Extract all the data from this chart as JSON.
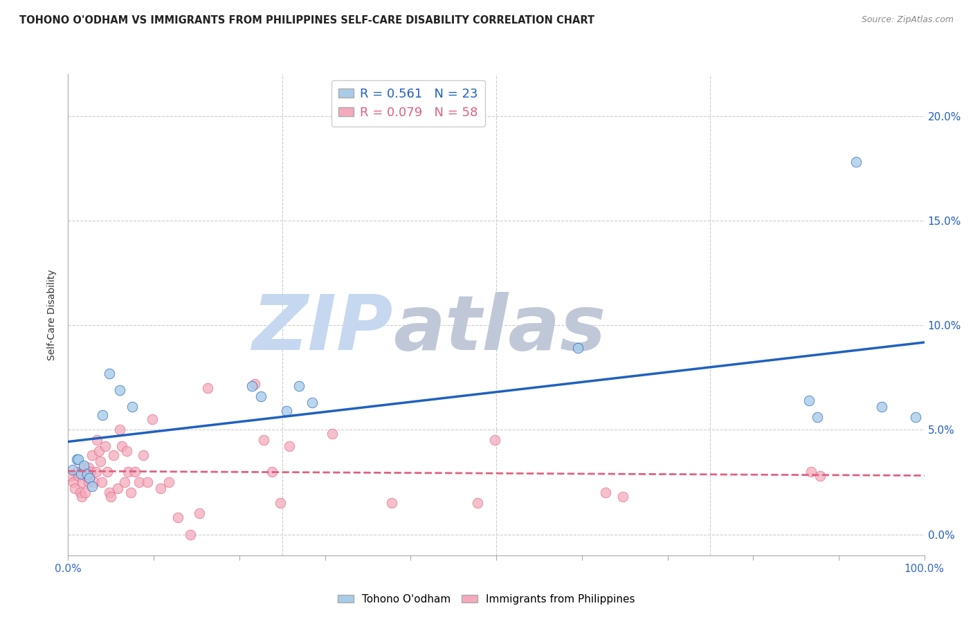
{
  "title": "TOHONO O'ODHAM VS IMMIGRANTS FROM PHILIPPINES SELF-CARE DISABILITY CORRELATION CHART",
  "source": "Source: ZipAtlas.com",
  "ylabel": "Self-Care Disability",
  "series1_label": "Tohono O'odham",
  "series2_label": "Immigrants from Philippines",
  "R1": 0.561,
  "N1": 23,
  "R2": 0.079,
  "N2": 58,
  "color1": "#a8cce8",
  "color2": "#f4aabb",
  "line1_color": "#2060c0",
  "line2_color": "#e06080",
  "xlim": [
    0.0,
    1.0
  ],
  "ylim": [
    -0.01,
    0.22
  ],
  "yticks": [
    0.0,
    0.05,
    0.1,
    0.15,
    0.2
  ],
  "xtick_major": [
    0.0,
    1.0
  ],
  "xtick_minor": [
    0.1,
    0.2,
    0.3,
    0.4,
    0.5,
    0.6,
    0.7,
    0.8,
    0.9
  ],
  "scatter1_x": [
    0.005,
    0.01,
    0.012,
    0.015,
    0.018,
    0.022,
    0.025,
    0.028,
    0.04,
    0.048,
    0.06,
    0.075,
    0.215,
    0.225,
    0.255,
    0.27,
    0.285,
    0.595,
    0.865,
    0.875,
    0.92,
    0.95,
    0.99
  ],
  "scatter1_y": [
    0.031,
    0.036,
    0.036,
    0.029,
    0.033,
    0.029,
    0.027,
    0.023,
    0.057,
    0.077,
    0.069,
    0.061,
    0.071,
    0.066,
    0.059,
    0.071,
    0.063,
    0.089,
    0.064,
    0.056,
    0.178,
    0.061,
    0.056
  ],
  "scatter2_x": [
    0.003,
    0.006,
    0.008,
    0.01,
    0.012,
    0.014,
    0.016,
    0.017,
    0.018,
    0.02,
    0.021,
    0.023,
    0.024,
    0.024,
    0.026,
    0.028,
    0.03,
    0.033,
    0.034,
    0.036,
    0.038,
    0.039,
    0.043,
    0.046,
    0.048,
    0.05,
    0.053,
    0.058,
    0.06,
    0.063,
    0.066,
    0.068,
    0.07,
    0.073,
    0.078,
    0.083,
    0.088,
    0.093,
    0.098,
    0.108,
    0.118,
    0.128,
    0.143,
    0.153,
    0.163,
    0.218,
    0.228,
    0.238,
    0.248,
    0.258,
    0.308,
    0.378,
    0.478,
    0.498,
    0.628,
    0.648,
    0.868,
    0.878
  ],
  "scatter2_y": [
    0.028,
    0.025,
    0.022,
    0.03,
    0.028,
    0.02,
    0.018,
    0.025,
    0.032,
    0.02,
    0.028,
    0.028,
    0.025,
    0.032,
    0.03,
    0.038,
    0.025,
    0.03,
    0.045,
    0.04,
    0.035,
    0.025,
    0.042,
    0.03,
    0.02,
    0.018,
    0.038,
    0.022,
    0.05,
    0.042,
    0.025,
    0.04,
    0.03,
    0.02,
    0.03,
    0.025,
    0.038,
    0.025,
    0.055,
    0.022,
    0.025,
    0.008,
    0.0,
    0.01,
    0.07,
    0.072,
    0.045,
    0.03,
    0.015,
    0.042,
    0.048,
    0.015,
    0.015,
    0.045,
    0.02,
    0.018,
    0.03,
    0.028
  ],
  "watermark_text": "ZIP",
  "watermark_text2": "atlas",
  "watermark_color1": "#c5d8f0",
  "watermark_color2": "#c0c8d8",
  "background_color": "#ffffff",
  "grid_color": "#cccccc",
  "grid_linestyle": "--",
  "trend1_x0": 0.0,
  "trend1_x1": 1.0,
  "trend2_x0": 0.0,
  "trend2_x1": 1.0
}
